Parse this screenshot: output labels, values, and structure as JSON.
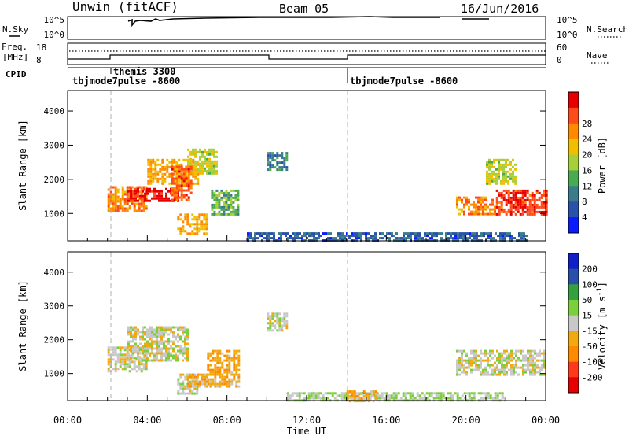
{
  "header": {
    "station": "Unwin (fitACF)",
    "beam": "Beam 05",
    "date": "16/Jun/2016"
  },
  "noise_panel": {
    "left_label": "N.Sky",
    "right_label": "N.Search",
    "left_ticks": [
      "10^5",
      "10^0"
    ],
    "right_ticks": [
      "10^5",
      "10^0"
    ]
  },
  "freq_panel": {
    "left_label_line1": "Freq.",
    "left_label_line2": "[MHz]",
    "left_ticks": [
      "18",
      "8"
    ],
    "right_label": "Nave",
    "right_ticks": [
      "60",
      "0"
    ]
  },
  "cpid": {
    "label": "CPID",
    "segments": [
      {
        "start_hour": 0,
        "name": "tbjmode7pulse -8600"
      },
      {
        "start_hour": 2,
        "name": "themis 3300"
      },
      {
        "start_hour": 14,
        "name": "tbjmode7pulse -8600"
      }
    ]
  },
  "time_axis": {
    "label": "Time UT",
    "ticks": [
      "00:00",
      "04:00",
      "08:00",
      "12:00",
      "16:00",
      "20:00",
      "00:00"
    ]
  },
  "colors": {
    "power_scale": [
      "#0a1cff",
      "#2a52a8",
      "#3a7c8c",
      "#4aaa50",
      "#a6cf39",
      "#f0c000",
      "#ff8a00",
      "#ff4a1a",
      "#e60000"
    ],
    "velocity_scale": [
      "#e60000",
      "#ff3a1a",
      "#ff8a00",
      "#f0aa10",
      "#c8c8c8",
      "#7ccf3c",
      "#34a040",
      "#2850a8",
      "#1020c8"
    ]
  },
  "chart_data": [
    {
      "type": "heatmap",
      "title": "",
      "xlabel": "Time UT",
      "ylabel": "Slant Range [km]",
      "xlim_hours": [
        0,
        24
      ],
      "ylim": [
        200,
        4600
      ],
      "yticks": [
        "1000",
        "2000",
        "3000",
        "4000"
      ],
      "colorbar": {
        "label": "Power [dB]",
        "ticks": [
          "4",
          "8",
          "12",
          "16",
          "20",
          "24",
          "28"
        ],
        "range": [
          0,
          30
        ]
      },
      "regions": [
        {
          "t0": 2.0,
          "t1": 4.0,
          "r0": 1100,
          "r1": 1800,
          "value": 22
        },
        {
          "t0": 3.0,
          "t1": 5.5,
          "r0": 1400,
          "r1": 1750,
          "value": 28
        },
        {
          "t0": 4.0,
          "t1": 6.5,
          "r0": 1900,
          "r1": 2600,
          "value": 20
        },
        {
          "t0": 6.0,
          "t1": 7.5,
          "r0": 2200,
          "r1": 2900,
          "value": 16
        },
        {
          "t0": 5.2,
          "t1": 6.2,
          "r0": 1400,
          "r1": 2400,
          "value": 24
        },
        {
          "t0": 5.5,
          "t1": 7.0,
          "r0": 400,
          "r1": 1000,
          "value": 20
        },
        {
          "t0": 7.2,
          "t1": 8.6,
          "r0": 1000,
          "r1": 1700,
          "value": 12
        },
        {
          "t0": 10.0,
          "t1": 11.0,
          "r0": 2300,
          "r1": 2800,
          "value": 8
        },
        {
          "t0": 19.5,
          "t1": 21.5,
          "r0": 1000,
          "r1": 1500,
          "value": 22
        },
        {
          "t0": 21.5,
          "t1": 24.0,
          "r0": 1000,
          "r1": 1700,
          "value": 26
        },
        {
          "t0": 21.0,
          "t1": 22.5,
          "r0": 1900,
          "r1": 2600,
          "value": 16
        },
        {
          "t0": 9.0,
          "t1": 23.0,
          "r0": 200,
          "r1": 450,
          "value": 6
        }
      ]
    },
    {
      "type": "heatmap",
      "title": "",
      "xlabel": "Time UT",
      "ylabel": "Slant Range [km]",
      "xlim_hours": [
        0,
        24
      ],
      "ylim": [
        200,
        4600
      ],
      "yticks": [
        "1000",
        "2000",
        "3000",
        "4000"
      ],
      "colorbar": {
        "label": "Velocity [m s^-1]",
        "ticks": [
          "200",
          "100",
          "50",
          "15",
          "-15",
          "-50",
          "-100",
          "-200"
        ],
        "range": [
          -250,
          250
        ]
      },
      "regions": [
        {
          "t0": 2.0,
          "t1": 4.0,
          "r0": 1100,
          "r1": 1800,
          "value": 0
        },
        {
          "t0": 3.0,
          "t1": 6.0,
          "r0": 1400,
          "r1": 2400,
          "value": 0
        },
        {
          "t0": 5.5,
          "t1": 6.5,
          "r0": 400,
          "r1": 1000,
          "value": 0
        },
        {
          "t0": 7.0,
          "t1": 8.6,
          "r0": 600,
          "r1": 1700,
          "value": -70
        },
        {
          "t0": 6.0,
          "t1": 7.0,
          "r0": 600,
          "r1": 1000,
          "value": -60
        },
        {
          "t0": 10.0,
          "t1": 11.0,
          "r0": 2300,
          "r1": 2800,
          "value": 0
        },
        {
          "t0": 19.5,
          "t1": 24.0,
          "r0": 1000,
          "r1": 1700,
          "value": 0
        },
        {
          "t0": 11.0,
          "t1": 22.0,
          "r0": 200,
          "r1": 450,
          "value": 30
        },
        {
          "t0": 14.0,
          "t1": 15.5,
          "r0": 200,
          "r1": 500,
          "value": -60
        }
      ]
    }
  ]
}
